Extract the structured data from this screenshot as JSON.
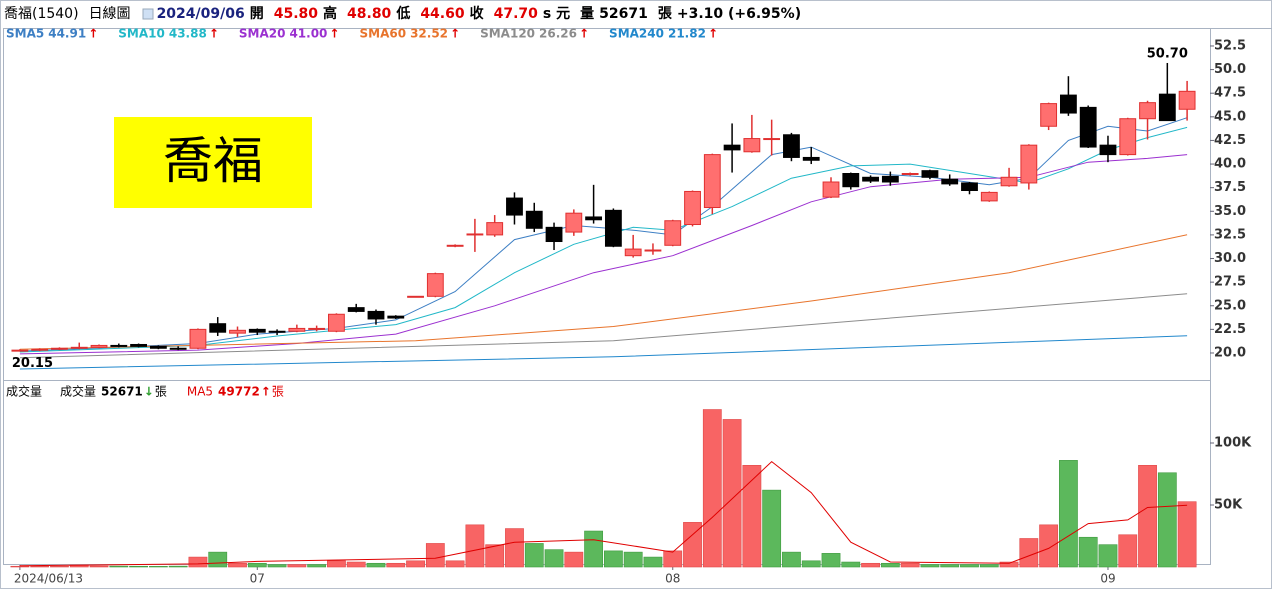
{
  "chart_data": [
    {
      "type": "candlestick",
      "header": [
        {
          "text": "喬福(1540)",
          "color": "#000000"
        },
        {
          "text": "日線圖",
          "color": "#000000"
        },
        {
          "text": "2024/09/06",
          "color": "#1a237e"
        },
        {
          "text": "開",
          "color": "#000000"
        },
        {
          "text": "45.80",
          "color": "#e00000"
        },
        {
          "text": "高",
          "color": "#000000"
        },
        {
          "text": "48.80",
          "color": "#e00000"
        },
        {
          "text": "低",
          "color": "#000000"
        },
        {
          "text": "44.60",
          "color": "#e00000"
        },
        {
          "text": "收",
          "color": "#000000"
        },
        {
          "text": "47.70",
          "color": "#e00000"
        },
        {
          "text": "s 元",
          "color": "#000000"
        },
        {
          "text": "量",
          "color": "#000000"
        },
        {
          "text": "52671",
          "color": "#000000"
        },
        {
          "text": "張",
          "color": "#000000"
        },
        {
          "text": "+3.10 (+6.95%)",
          "color": "#000000"
        }
      ],
      "stamp": "喬福",
      "categories": [
        "2024/06/13",
        null,
        null,
        null,
        null,
        null,
        null,
        null,
        null,
        null,
        null,
        null,
        "07",
        null,
        null,
        null,
        null,
        null,
        null,
        null,
        null,
        null,
        null,
        null,
        null,
        null,
        null,
        null,
        null,
        null,
        null,
        null,
        null,
        "08",
        null,
        null,
        null,
        null,
        null,
        null,
        null,
        null,
        null,
        null,
        null,
        null,
        null,
        null,
        null,
        null,
        null,
        null,
        null,
        null,
        null,
        "09",
        null,
        null,
        null,
        null
      ],
      "open": [
        20.2,
        20.3,
        20.4,
        20.5,
        20.6,
        20.8,
        20.9,
        20.7,
        20.5,
        20.5,
        23.1,
        22.1,
        22.5,
        22.3,
        22.3,
        22.5,
        22.3,
        24.8,
        24.4,
        23.9,
        25.9,
        26.0,
        31.3,
        32.5,
        32.5,
        36.4,
        35.0,
        33.3,
        32.8,
        34.4,
        35.1,
        30.3,
        30.8,
        31.4,
        33.6,
        35.4,
        42.0,
        41.3,
        42.6,
        43.1,
        40.7,
        36.5,
        39.0,
        38.6,
        38.7,
        38.9,
        39.3,
        38.4,
        38.0,
        36.1,
        37.7,
        38.0,
        44.0,
        47.3,
        46.0,
        42.0,
        41.0,
        44.8,
        47.4,
        45.8
      ],
      "high": [
        20.4,
        20.5,
        20.6,
        21.1,
        20.9,
        21.0,
        21.0,
        20.8,
        20.7,
        22.6,
        23.8,
        22.8,
        22.6,
        22.5,
        23.0,
        22.9,
        24.2,
        25.2,
        24.6,
        24.0,
        26.0,
        28.5,
        31.5,
        34.2,
        34.6,
        37.0,
        35.9,
        33.8,
        35.2,
        37.8,
        35.3,
        32.5,
        31.6,
        34.1,
        37.2,
        41.1,
        44.3,
        45.2,
        44.7,
        43.3,
        41.8,
        38.6,
        39.1,
        38.8,
        39.2,
        39.1,
        39.4,
        38.9,
        38.1,
        37.1,
        39.6,
        42.1,
        46.5,
        49.3,
        46.2,
        43.0,
        44.9,
        46.7,
        50.7,
        48.8
      ],
      "low": [
        20.15,
        20.2,
        20.3,
        20.4,
        20.5,
        20.6,
        20.6,
        20.4,
        20.3,
        20.4,
        21.8,
        21.7,
        21.9,
        21.9,
        22.2,
        22.3,
        22.2,
        24.3,
        23.0,
        23.6,
        25.9,
        25.9,
        31.2,
        30.7,
        32.3,
        33.6,
        32.8,
        30.9,
        32.4,
        33.7,
        31.2,
        30.1,
        30.4,
        31.3,
        33.4,
        34.7,
        39.1,
        41.2,
        40.9,
        40.3,
        40.0,
        36.4,
        37.3,
        38.0,
        37.7,
        38.8,
        38.4,
        37.7,
        36.8,
        36.0,
        37.6,
        37.3,
        43.6,
        45.1,
        41.7,
        40.2,
        40.9,
        42.6,
        44.6,
        44.6
      ],
      "close": [
        20.3,
        20.4,
        20.5,
        20.6,
        20.8,
        20.7,
        20.7,
        20.5,
        20.4,
        22.5,
        22.2,
        22.4,
        22.2,
        22.2,
        22.6,
        22.6,
        24.1,
        24.4,
        23.6,
        23.7,
        26.0,
        28.4,
        31.4,
        32.6,
        33.8,
        34.6,
        33.2,
        31.8,
        34.8,
        34.1,
        31.3,
        31.0,
        30.9,
        34.0,
        37.1,
        41.0,
        41.5,
        42.7,
        42.7,
        40.7,
        40.4,
        38.1,
        37.6,
        38.2,
        38.1,
        39.0,
        38.6,
        37.9,
        37.2,
        37.0,
        38.6,
        42.0,
        46.4,
        45.4,
        41.8,
        41.0,
        44.8,
        46.5,
        44.6,
        47.7
      ],
      "up_color": "#ff6f6f",
      "up_edge": "#e03030",
      "down_color": "#000000",
      "series": [
        {
          "name": "SMA5",
          "color": "#3d7fc4",
          "last": {
            "value": 44.91,
            "label": "44.91"
          },
          "trend": "↑",
          "x": [
            0,
            5,
            9,
            12,
            16,
            19,
            22,
            25,
            28,
            31,
            33,
            35,
            38,
            40,
            43,
            46,
            49,
            51,
            53,
            55,
            57,
            59
          ],
          "values": [
            20.2,
            20.6,
            21.0,
            22.0,
            22.6,
            23.5,
            26.5,
            32.0,
            33.5,
            33.0,
            32.5,
            35.5,
            41.0,
            41.8,
            39.0,
            38.6,
            37.8,
            38.5,
            42.5,
            44.0,
            43.5,
            44.91
          ]
        },
        {
          "name": "SMA10",
          "color": "#22b8c8",
          "last": {
            "value": 43.88,
            "label": "43.88"
          },
          "trend": "↑",
          "x": [
            0,
            9,
            13,
            19,
            22,
            25,
            28,
            31,
            33,
            36,
            39,
            42,
            45,
            48,
            51,
            53,
            55,
            57,
            59
          ],
          "values": [
            20.1,
            20.8,
            21.8,
            23.0,
            24.8,
            28.5,
            31.5,
            33.3,
            33.0,
            35.5,
            38.5,
            39.8,
            40.0,
            39.0,
            38.0,
            39.5,
            41.5,
            42.8,
            43.88
          ]
        },
        {
          "name": "SMA20",
          "color": "#9b30d0",
          "last": {
            "value": 41,
            "label": "41.00"
          },
          "trend": "↑",
          "x": [
            0,
            9,
            14,
            19,
            24,
            29,
            33,
            37,
            40,
            43,
            47,
            51,
            54,
            57,
            59
          ],
          "values": [
            19.9,
            20.3,
            21.0,
            22.0,
            25.0,
            28.5,
            30.3,
            33.5,
            36.0,
            37.6,
            38.4,
            38.6,
            40.2,
            40.6,
            41.0
          ]
        },
        {
          "name": "SMA60",
          "color": "#e8742c",
          "last": {
            "value": 32.52,
            "label": "32.52"
          },
          "trend": "↑",
          "x": [
            0,
            20,
            30,
            40,
            50,
            59
          ],
          "values": [
            20.4,
            21.3,
            22.8,
            25.5,
            28.5,
            32.52
          ]
        },
        {
          "name": "SMA120",
          "color": "#8c8c8c",
          "last": {
            "value": 26.26,
            "label": "26.26"
          },
          "trend": "↑",
          "x": [
            0,
            30,
            59
          ],
          "values": [
            19.5,
            21.3,
            26.26
          ]
        },
        {
          "name": "SMA240",
          "color": "#2288cc",
          "last": {
            "value": 21.82,
            "label": "21.82"
          },
          "trend": "↑",
          "x": [
            0,
            30,
            59
          ],
          "values": [
            18.3,
            19.6,
            21.82
          ]
        }
      ],
      "annotations": [
        {
          "text": "50.70",
          "at": 58,
          "value": 50.7
        },
        {
          "text": "20.15",
          "at": 0,
          "value": 20.15
        }
      ],
      "ylim": [
        17.14,
        53.45
      ],
      "yticks": [
        {
          "value": 20,
          "label": "20.0"
        },
        {
          "value": 22.5,
          "label": "22.5"
        },
        {
          "value": 25,
          "label": "25.0"
        },
        {
          "value": 27.5,
          "label": "27.5"
        },
        {
          "value": 30,
          "label": "30.0"
        },
        {
          "value": 32.5,
          "label": "32.5"
        },
        {
          "value": 35,
          "label": "35.0"
        },
        {
          "value": 37.5,
          "label": "37.5"
        },
        {
          "value": 40,
          "label": "40.0"
        },
        {
          "value": 42.5,
          "label": "42.5"
        },
        {
          "value": 45,
          "label": "45.0"
        },
        {
          "value": 47.5,
          "label": "47.5"
        },
        {
          "value": 50,
          "label": "50.0"
        },
        {
          "value": 52.5,
          "label": "52.5"
        }
      ]
    },
    {
      "type": "bar",
      "title": "成交量",
      "legend": [
        {
          "name": "成交量",
          "value": 52671,
          "trend": "↓",
          "trend_color": "#2e9e2e",
          "unit": "張",
          "color": "#000000"
        },
        {
          "name": "MA5",
          "value": 49772,
          "trend": "↑",
          "trend_color": "#e00000",
          "unit": "張",
          "color": "#e00000"
        }
      ],
      "values": [
        600,
        500,
        500,
        1500,
        800,
        700,
        600,
        500,
        700,
        8000,
        12000,
        3000,
        3000,
        2000,
        2000,
        2000,
        5000,
        4000,
        3000,
        3000,
        5000,
        19000,
        5000,
        34000,
        18000,
        31000,
        19000,
        14000,
        12000,
        29000,
        13000,
        12000,
        8000,
        13000,
        36000,
        127000,
        119000,
        82000,
        62000,
        12000,
        5000,
        11000,
        4000,
        3000,
        3000,
        3000,
        2000,
        2000,
        2000,
        2000,
        4000,
        23000,
        34000,
        86000,
        24000,
        18000,
        26000,
        82000,
        76000,
        52671
      ],
      "up_color": "#f86464",
      "down_color": "#5cb85c",
      "series": [
        {
          "name": "MA5",
          "color": "#e00000",
          "x": [
            0,
            9,
            12,
            21,
            25,
            29,
            33,
            35,
            38,
            40,
            42,
            44,
            50,
            52,
            54,
            56,
            57,
            59
          ],
          "values": [
            1000,
            2500,
            4500,
            7000,
            20000,
            22000,
            12000,
            40000,
            85000,
            60000,
            20000,
            4000,
            3000,
            15000,
            35000,
            38000,
            48000,
            49772
          ]
        }
      ],
      "ylim": [
        0,
        150000
      ],
      "yticks": [
        {
          "value": 50000,
          "label": "50K"
        },
        {
          "value": 100000,
          "label": "100K"
        }
      ]
    }
  ]
}
